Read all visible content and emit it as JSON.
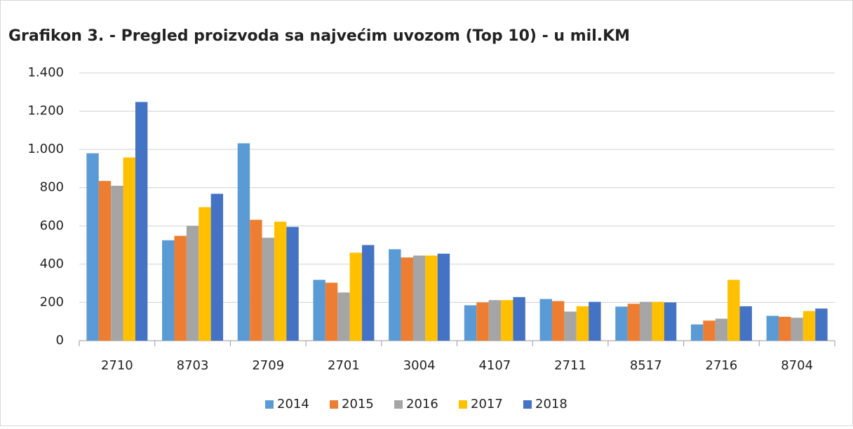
{
  "chart_data": {
    "type": "bar",
    "title": "Grafikon 3. - Pregled proizvoda sa najvećim uvozom (Top 10) - u mil.KM",
    "categories": [
      "2710",
      "8703",
      "2709",
      "2701",
      "3004",
      "4107",
      "2711",
      "8517",
      "2716",
      "8704"
    ],
    "series": [
      {
        "name": "2014",
        "color": "#5b9bd5",
        "values": [
          980,
          525,
          1032,
          318,
          478,
          185,
          218,
          178,
          85,
          130
        ]
      },
      {
        "name": "2015",
        "color": "#ed7d31",
        "values": [
          835,
          548,
          632,
          303,
          435,
          200,
          207,
          193,
          105,
          125
        ]
      },
      {
        "name": "2016",
        "color": "#a5a5a5",
        "values": [
          810,
          600,
          538,
          252,
          445,
          212,
          152,
          203,
          115,
          120
        ]
      },
      {
        "name": "2017",
        "color": "#ffc000",
        "values": [
          958,
          698,
          622,
          460,
          445,
          212,
          180,
          203,
          318,
          155
        ]
      },
      {
        "name": "2018",
        "color": "#4472c4",
        "values": [
          1248,
          768,
          595,
          500,
          455,
          228,
          203,
          200,
          180,
          168
        ]
      }
    ],
    "ylim": [
      0,
      1400
    ],
    "yticks": [
      0,
      200,
      400,
      600,
      800,
      {
        "value": 1000,
        "label": "1.000"
      },
      {
        "value": 1200,
        "label": "1.200"
      },
      {
        "value": 1400,
        "label": "1.400"
      }
    ],
    "grid": true,
    "legend": "bottom"
  }
}
